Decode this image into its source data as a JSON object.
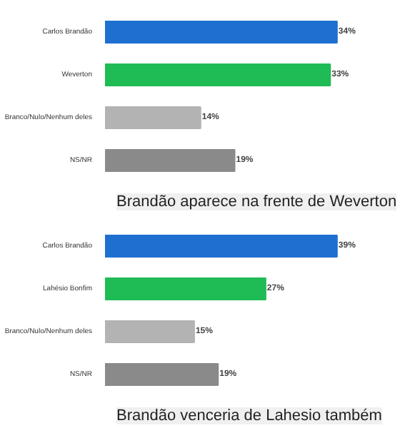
{
  "chart_data": [
    {
      "type": "bar",
      "orientation": "horizontal",
      "title": "Brandão aparece na frente de Weverton",
      "categories": [
        "Carlos Brandão",
        "Weverton",
        "Branco/Nulo/Nenhum deles",
        "NS/NR"
      ],
      "values": [
        34,
        33,
        14,
        19
      ],
      "colors": [
        "#1f6fd0",
        "#1fbb55",
        "#b3b3b3",
        "#8a8a8a"
      ],
      "value_labels": [
        "34%",
        "33%",
        "14%",
        "19%"
      ],
      "grid": false
    },
    {
      "type": "bar",
      "orientation": "horizontal",
      "title": "Brandão venceria de Lahesio também",
      "categories": [
        "Carlos Brandão",
        "Lahésio Bonfim",
        "Branco/Nulo/Nenhum deles",
        "NS/NR"
      ],
      "values": [
        39,
        27,
        15,
        19
      ],
      "colors": [
        "#1f6fd0",
        "#1fbb55",
        "#b3b3b3",
        "#8a8a8a"
      ],
      "value_labels": [
        "39%",
        "27%",
        "15%",
        "19%"
      ],
      "grid": false
    }
  ]
}
